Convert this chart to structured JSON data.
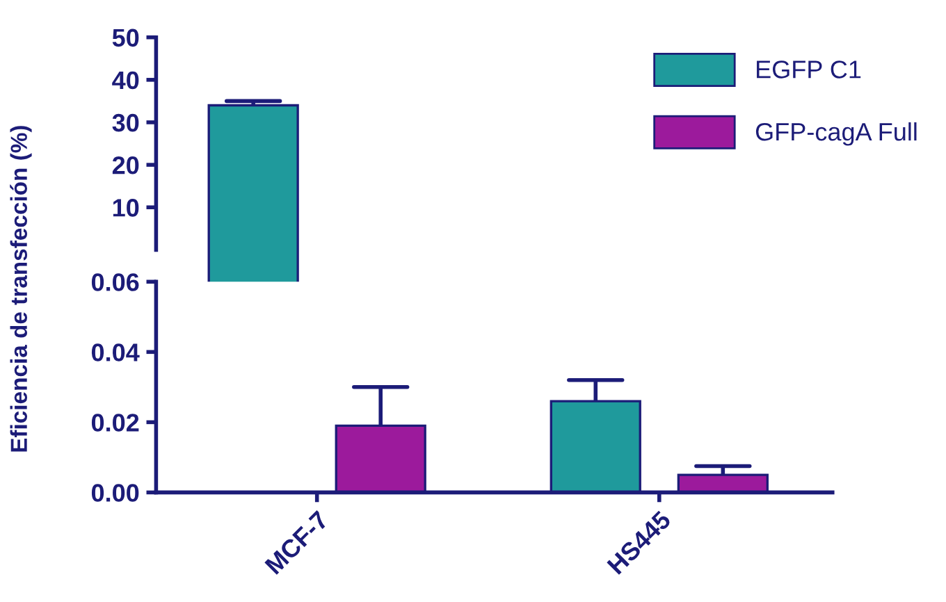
{
  "chart_data": [
    {
      "type": "bar",
      "categories": [
        null,
        null
      ],
      "ylabel": "Eficiencia de transfección (%)",
      "ylim": [
        0,
        50
      ],
      "yticks": [
        10,
        20,
        30,
        40,
        50
      ],
      "tick_labels": "y",
      "legend": "right",
      "grid": false,
      "series": [
        {
          "name": "EGFP C1",
          "color": "#1f9a9c",
          "values": [
            34,
            null
          ],
          "errors": [
            1,
            null
          ]
        },
        {
          "name": "GFP-cagA Full",
          "color": "#9c1a9c",
          "values": [
            null,
            null
          ]
        }
      ]
    },
    {
      "type": "bar",
      "categories": [
        "MCF-7",
        "HS445"
      ],
      "ylim": [
        0,
        0.06
      ],
      "yticks": [
        {
          "value": 0,
          "label": "0.00"
        },
        0.02,
        0.04,
        0.06
      ],
      "legend": false,
      "grid": false,
      "series": [
        {
          "color": "#1f9a9c",
          "values": [
            null,
            0.026
          ],
          "errors": [
            null,
            0.006
          ]
        },
        {
          "color": "#9c1a9c",
          "values": [
            0.019,
            0.005
          ],
          "errors": [
            0.011,
            0.0025
          ]
        }
      ]
    }
  ]
}
